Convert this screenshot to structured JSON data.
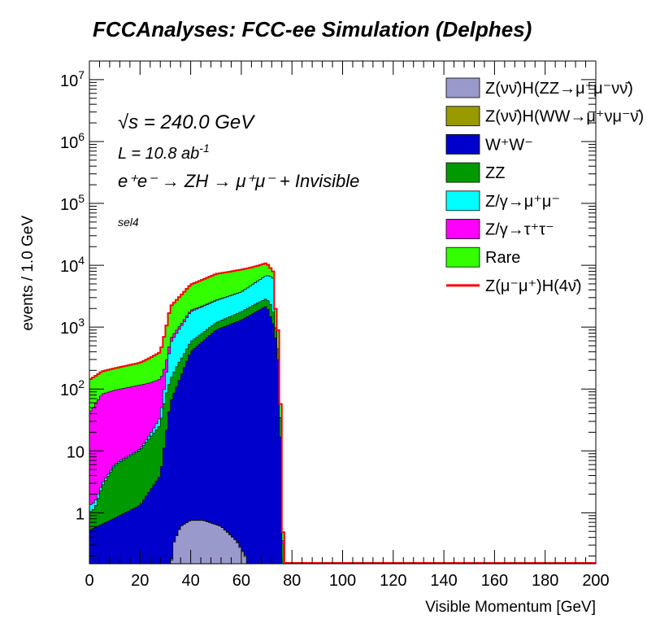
{
  "chart_data": {
    "type": "histogram-stacked",
    "title": "FCCAnalyses: FCC-ee Simulation (Delphes)",
    "xlabel": "Visible Momentum [GeV]",
    "ylabel": "events / 1.0 GeV",
    "xlim": [
      0,
      200
    ],
    "ylim": [
      0.15,
      20000000
    ],
    "log_y": true,
    "grid": false,
    "legend_position": "top-right",
    "bin_width": 1.0,
    "x_ticks": [
      "0",
      "20",
      "40",
      "60",
      "80",
      "100",
      "120",
      "140",
      "160",
      "180",
      "200"
    ],
    "y_ticks": [
      {
        "value": 1,
        "label": "1"
      },
      {
        "value": 10,
        "label": "10"
      },
      {
        "value": 100,
        "label": "10",
        "sup": "2"
      },
      {
        "value": 1000,
        "label": "10",
        "sup": "3"
      },
      {
        "value": 10000,
        "label": "10",
        "sup": "4"
      },
      {
        "value": 100000,
        "label": "10",
        "sup": "5"
      },
      {
        "value": 1000000,
        "label": "10",
        "sup": "6"
      },
      {
        "value": 10000000,
        "label": "10",
        "sup": "7"
      }
    ],
    "annotations": {
      "sqrt_s": "√s = 240.0 GeV",
      "lumi_main": "L = 10.8 ab",
      "lumi_sup": "-1",
      "process": "e⁺e⁻ → ZH → μ⁺μ⁻ + Invisible",
      "selection": "sel4"
    },
    "series": [
      {
        "name": "Z(νν̄)H(ZZ→μ⁺μ⁻νν̄)",
        "color": "#9999cc",
        "edges": [
          [
            0,
            0.01
          ],
          [
            30,
            0.01
          ],
          [
            33,
            0.3
          ],
          [
            36,
            0.6
          ],
          [
            40,
            0.75
          ],
          [
            45,
            0.75
          ],
          [
            52,
            0.6
          ],
          [
            58,
            0.35
          ],
          [
            62,
            0.18
          ],
          [
            64,
            0.01
          ],
          [
            200,
            0.01
          ]
        ]
      },
      {
        "name": "Z(νν̄)H(WW→μ⁺νμ⁻ν̄)",
        "color": "#999900",
        "edges": [
          [
            0,
            0.01
          ],
          [
            200,
            0.01
          ]
        ]
      },
      {
        "name": "W⁺W⁻",
        "color": "#0000cc",
        "edges": [
          [
            0,
            0.5
          ],
          [
            10,
            0.8
          ],
          [
            20,
            1.3
          ],
          [
            28,
            4
          ],
          [
            32,
            60
          ],
          [
            40,
            400
          ],
          [
            50,
            900
          ],
          [
            60,
            1300
          ],
          [
            70,
            2200
          ],
          [
            73,
            1000
          ],
          [
            75,
            200
          ],
          [
            77,
            0.01
          ],
          [
            200,
            0.01
          ]
        ]
      },
      {
        "name": "ZZ",
        "color": "#009900",
        "edges": [
          [
            0,
            0.5
          ],
          [
            2,
            0.6
          ],
          [
            5,
            2
          ],
          [
            10,
            5
          ],
          [
            20,
            9
          ],
          [
            28,
            22
          ],
          [
            30,
            60
          ],
          [
            35,
            130
          ],
          [
            40,
            180
          ],
          [
            50,
            280
          ],
          [
            60,
            480
          ],
          [
            65,
            600
          ],
          [
            70,
            700
          ],
          [
            72,
            900
          ],
          [
            75,
            100
          ],
          [
            76,
            3
          ],
          [
            77,
            0.01
          ],
          [
            200,
            0.01
          ]
        ]
      },
      {
        "name": "Z/γ→μ⁺μ⁻",
        "color": "#00ffff",
        "edges": [
          [
            0,
            0.3
          ],
          [
            10,
            0.3
          ],
          [
            20,
            0.5
          ],
          [
            28,
            10
          ],
          [
            32,
            400
          ],
          [
            40,
            1200
          ],
          [
            50,
            1500
          ],
          [
            60,
            1900
          ],
          [
            70,
            4000
          ],
          [
            73,
            4500
          ],
          [
            74,
            0.01
          ],
          [
            200,
            0.01
          ]
        ]
      },
      {
        "name": "Z/γ→τ⁺τ⁻",
        "color": "#ff00ff",
        "edges": [
          [
            0,
            40
          ],
          [
            5,
            80
          ],
          [
            10,
            90
          ],
          [
            20,
            105
          ],
          [
            28,
            110
          ],
          [
            32,
            110
          ],
          [
            40,
            90
          ],
          [
            50,
            50
          ],
          [
            60,
            25
          ],
          [
            70,
            10
          ],
          [
            72,
            5
          ],
          [
            75,
            1
          ],
          [
            77,
            0.01
          ],
          [
            200,
            0.01
          ]
        ]
      },
      {
        "name": "Rare",
        "color": "#33ff00",
        "edges": [
          [
            0,
            100
          ],
          [
            5,
            110
          ],
          [
            10,
            120
          ],
          [
            20,
            150
          ],
          [
            28,
            250
          ],
          [
            32,
            1500
          ],
          [
            40,
            3000
          ],
          [
            50,
            4500
          ],
          [
            60,
            4800
          ],
          [
            70,
            4000
          ],
          [
            73,
            1500
          ],
          [
            75,
            300
          ],
          [
            77,
            0.01
          ],
          [
            200,
            0.01
          ]
        ]
      },
      {
        "name": "Z(μ⁻μ⁺)H(4ν̄)",
        "color": "#ff0000",
        "line": true,
        "edges": [
          [
            0,
            0.01
          ],
          [
            200,
            0.01
          ]
        ]
      }
    ]
  }
}
